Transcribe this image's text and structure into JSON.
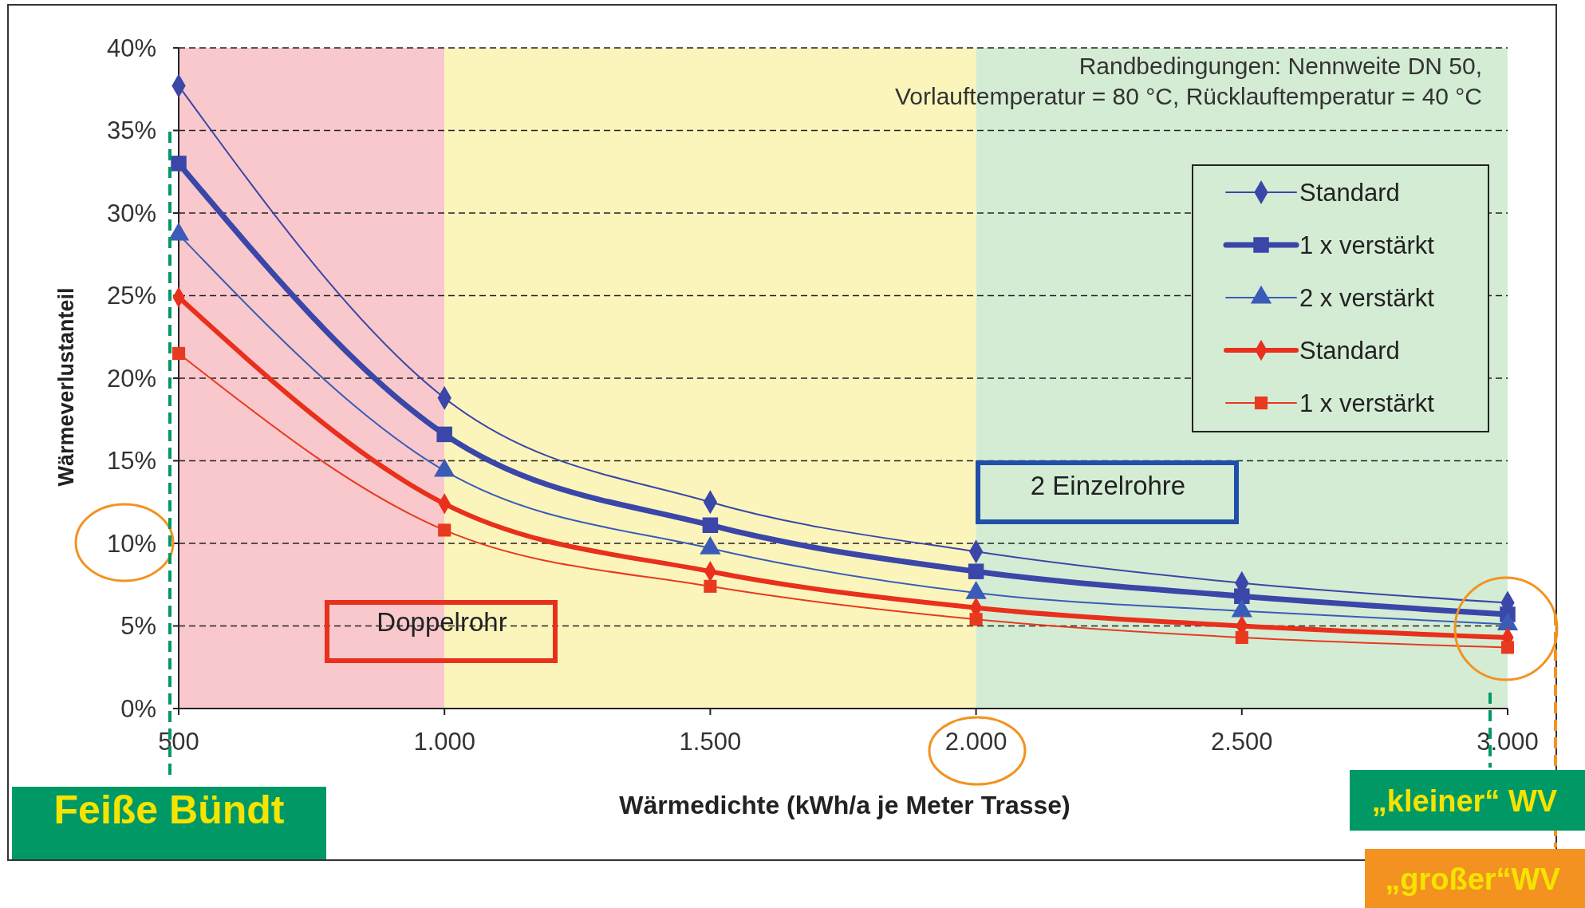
{
  "chart_data": {
    "type": "line",
    "xlabel": "Wärmedichte (kWh/a je Meter Trasse)",
    "ylabel": "Wärmeverlustanteil",
    "x": [
      500,
      1000,
      1500,
      2000,
      2500,
      3000
    ],
    "series": [
      {
        "name": "Standard",
        "color": "#3a46a8",
        "marker": "diamond",
        "values": [
          37.7,
          18.8,
          12.5,
          9.5,
          7.6,
          6.4
        ]
      },
      {
        "name": "1 x verstärkt",
        "color": "#3a46a8",
        "marker": "square",
        "values": [
          33.0,
          16.6,
          11.1,
          8.3,
          6.8,
          5.7
        ]
      },
      {
        "name": "2 x verstärkt",
        "color": "#3a5cb8",
        "marker": "triangle",
        "values": [
          28.7,
          14.4,
          9.7,
          7.0,
          5.9,
          5.1
        ]
      },
      {
        "name": "Standard",
        "color": "#e8301c",
        "marker": "diamond",
        "values": [
          24.9,
          12.4,
          8.3,
          6.1,
          5.0,
          4.3
        ]
      },
      {
        "name": "1 x verstärkt",
        "color": "#e83a20",
        "marker": "square",
        "values": [
          21.5,
          10.8,
          7.4,
          5.4,
          4.3,
          3.7
        ]
      }
    ],
    "xlim": [
      500,
      3000
    ],
    "xticks": [
      {
        "value": 500,
        "label": "500"
      },
      {
        "value": 1000,
        "label": "1.000"
      },
      {
        "value": 1500,
        "label": "1.500"
      },
      {
        "value": 2000,
        "label": "2.000"
      },
      {
        "value": 2500,
        "label": "2.500"
      },
      {
        "value": 3000,
        "label": "3.000"
      }
    ],
    "ylim": [
      0,
      40
    ],
    "yticks": [
      {
        "value": 0,
        "label": "0%"
      },
      {
        "value": 5,
        "label": "5%"
      },
      {
        "value": 10,
        "label": "10%"
      },
      {
        "value": 15,
        "label": "15%"
      },
      {
        "value": 20,
        "label": "20%"
      },
      {
        "value": 25,
        "label": "25%"
      },
      {
        "value": 30,
        "label": "30%"
      },
      {
        "value": 35,
        "label": "35%"
      },
      {
        "value": 40,
        "label": "40%"
      }
    ],
    "bands": [
      {
        "axis": "x",
        "from": 500,
        "to": 1000,
        "color": "#f8c8cc"
      },
      {
        "axis": "x",
        "from": 1000,
        "to": 2000,
        "color": "#fbf5bc"
      },
      {
        "axis": "x",
        "from": 2000,
        "to": 3000,
        "color": "#d4ecd4"
      }
    ],
    "grid": "y",
    "legend": "top right",
    "annotations": [
      "Randbedingungen: Nennweite DN 50,\nVorlauftemperatur = 80 °C, Rücklauftemperatur = 40 °C",
      "Doppelrohr",
      "2 Einzelrohre",
      "Feiße Bündt",
      "„kleiner“ WV",
      "„großer“WV"
    ]
  }
}
